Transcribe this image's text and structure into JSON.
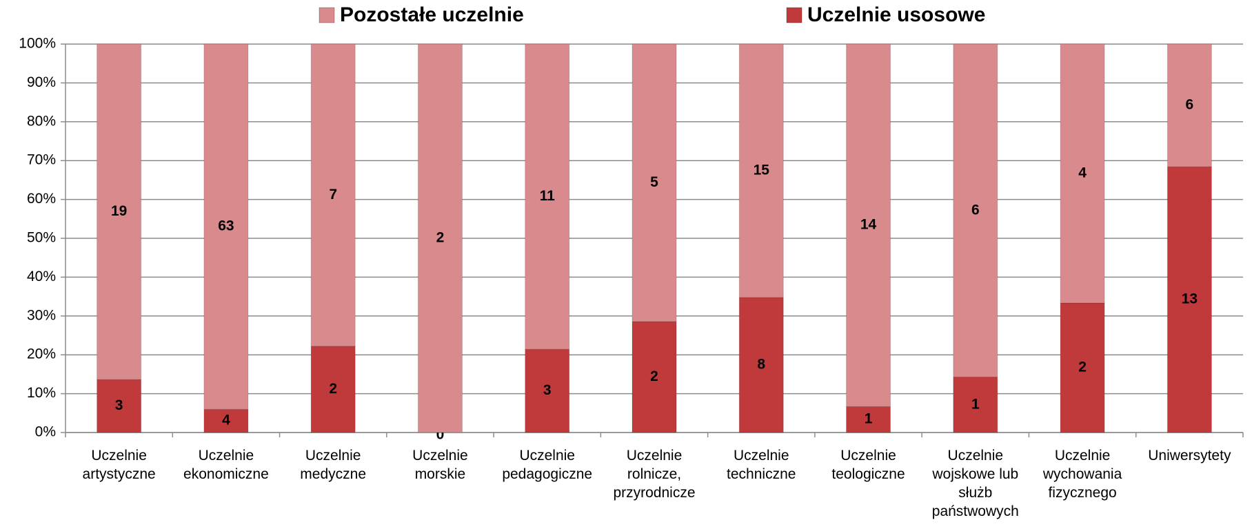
{
  "chart_data": {
    "type": "bar",
    "stacking": "percent",
    "categories": [
      "Uczelnie artystyczne",
      "Uczelnie ekonomiczne",
      "Uczelnie medyczne",
      "Uczelnie morskie",
      "Uczelnie pedagogiczne",
      "Uczelnie rolnicze, przyrodnicze",
      "Uczelnie techniczne",
      "Uczelnie teologiczne",
      "Uczelnie wojskowe lub służb państwowych",
      "Uczelnie wychowania fizycznego",
      "Uniwersytety"
    ],
    "series": [
      {
        "name": "Uczelnie usosowe",
        "color": "#c0393b",
        "values": [
          3,
          4,
          2,
          0,
          3,
          2,
          8,
          1,
          1,
          2,
          13
        ]
      },
      {
        "name": "Pozostałe uczelnie",
        "color": "#d98a8c",
        "values": [
          19,
          63,
          7,
          2,
          11,
          5,
          15,
          14,
          6,
          4,
          6
        ]
      }
    ],
    "ylim": [
      0,
      100
    ],
    "yticks": [
      {
        "value": 0,
        "label": "0%"
      },
      {
        "value": 10,
        "label": "10%"
      },
      {
        "value": 20,
        "label": "20%"
      },
      {
        "value": 30,
        "label": "30%"
      },
      {
        "value": 40,
        "label": "40%"
      },
      {
        "value": 50,
        "label": "50%"
      },
      {
        "value": 60,
        "label": "60%"
      },
      {
        "value": 70,
        "label": "70%"
      },
      {
        "value": 80,
        "label": "80%"
      },
      {
        "value": 90,
        "label": "90%"
      },
      {
        "value": 100,
        "label": "100%"
      }
    ],
    "grid": true,
    "legend": "top"
  }
}
